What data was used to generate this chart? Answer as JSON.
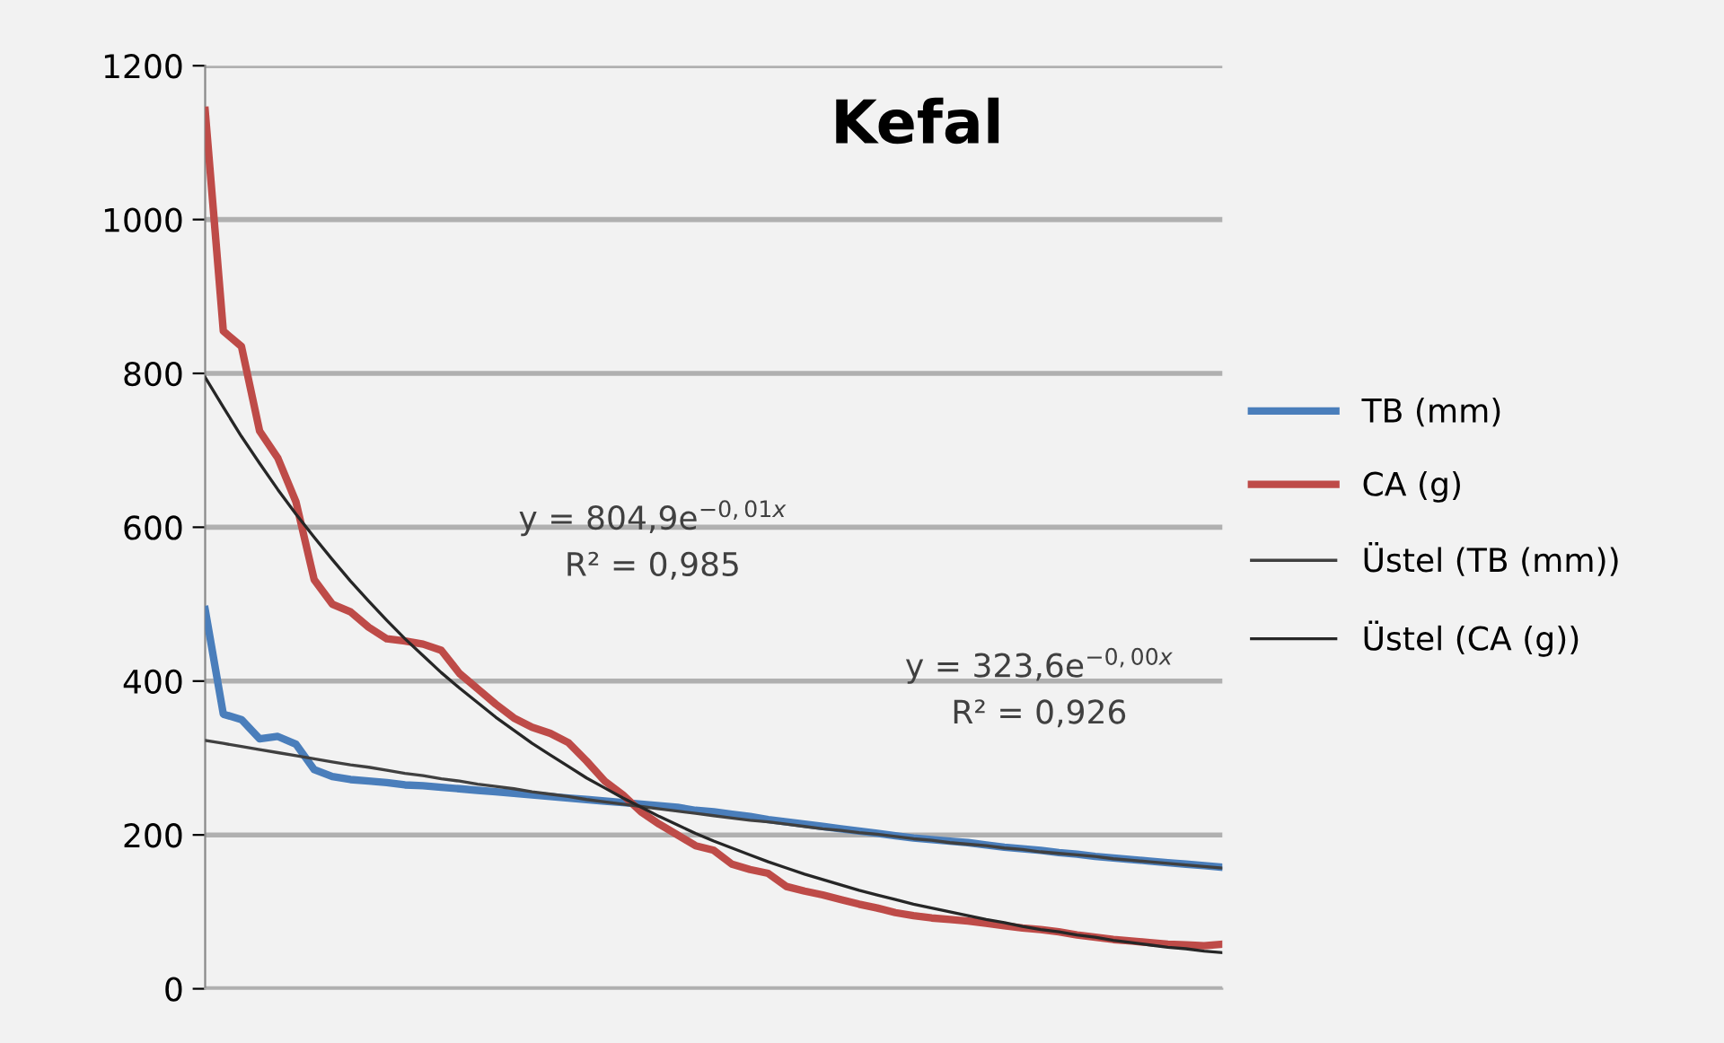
{
  "chart_data": {
    "type": "line",
    "title": "Kefal",
    "categories": [
      null,
      null,
      null,
      null,
      null,
      null,
      null,
      null,
      null,
      null,
      null,
      null,
      null,
      null,
      null,
      null,
      null,
      null,
      null,
      null,
      null,
      null,
      null,
      null,
      null,
      null,
      null,
      null,
      null,
      null,
      null,
      null,
      null,
      null,
      null,
      null,
      null,
      null,
      null,
      null,
      null,
      null,
      null,
      null,
      null,
      null,
      null,
      null,
      null,
      null,
      null,
      null,
      null,
      null,
      null,
      null,
      null
    ],
    "series": [
      {
        "name": "TB (mm)",
        "color": "#4a7ebb",
        "values": [
          493,
          357,
          350,
          325,
          328,
          318,
          285,
          276,
          272,
          270,
          268,
          265,
          264,
          262,
          260,
          258,
          256,
          254,
          252,
          250,
          248,
          246,
          244,
          242,
          240,
          238,
          236,
          232,
          230,
          227,
          224,
          220,
          217,
          214,
          211,
          208,
          205,
          202,
          199,
          196,
          194,
          192,
          190,
          187,
          184,
          182,
          180,
          177,
          175,
          172,
          170,
          168,
          166,
          164,
          162,
          160,
          158
        ]
      },
      {
        "name": "CA (g)",
        "color": "#be4b48",
        "values": [
          1142,
          855,
          835,
          725,
          690,
          633,
          532,
          500,
          490,
          470,
          455,
          452,
          448,
          440,
          410,
          390,
          370,
          352,
          340,
          332,
          320,
          296,
          270,
          252,
          230,
          214,
          200,
          186,
          180,
          162,
          155,
          150,
          133,
          127,
          122,
          116,
          110,
          105,
          99,
          95,
          92,
          90,
          88,
          85,
          82,
          79,
          77,
          74,
          70,
          67,
          64,
          62,
          60,
          58,
          57,
          56,
          58
        ]
      },
      {
        "name": "Üstel (TB (mm))",
        "color": "#404040",
        "values": [
          323,
          319,
          315,
          311,
          307,
          303,
          299,
          295,
          291,
          288,
          284,
          280,
          277,
          273,
          270,
          266,
          263,
          260,
          256,
          253,
          250,
          246,
          243,
          240,
          237,
          234,
          231,
          228,
          225,
          222,
          219,
          217,
          214,
          211,
          208,
          206,
          203,
          201,
          198,
          195,
          193,
          190,
          188,
          186,
          183,
          181,
          178,
          176,
          174,
          172,
          169,
          167,
          165,
          163,
          161,
          159,
          157
        ]
      },
      {
        "name": "Üstel (CA (g))",
        "color": "#262626",
        "values": [
          795,
          756,
          718,
          683,
          649,
          617,
          587,
          558,
          530,
          504,
          479,
          455,
          433,
          411,
          391,
          372,
          353,
          336,
          319,
          304,
          289,
          274,
          261,
          248,
          236,
          224,
          213,
          202,
          192,
          183,
          174,
          165,
          157,
          149,
          142,
          135,
          128,
          122,
          116,
          110,
          105,
          100,
          95,
          90,
          86,
          81,
          77,
          74,
          70,
          67,
          63,
          60,
          57,
          54,
          52,
          49,
          47
        ]
      }
    ],
    "ylim": [
      0,
      1200
    ],
    "yticks": [
      0,
      200,
      400,
      600,
      800,
      1000,
      1200
    ],
    "grid": "y",
    "legend": "right",
    "tick_labels": "y",
    "annotations": [
      "y = 804,9e$^{−0,01x}$\nR² = 0,985",
      "y = 323,6e$^{−0,00x}$\nR² = 0,926"
    ]
  }
}
